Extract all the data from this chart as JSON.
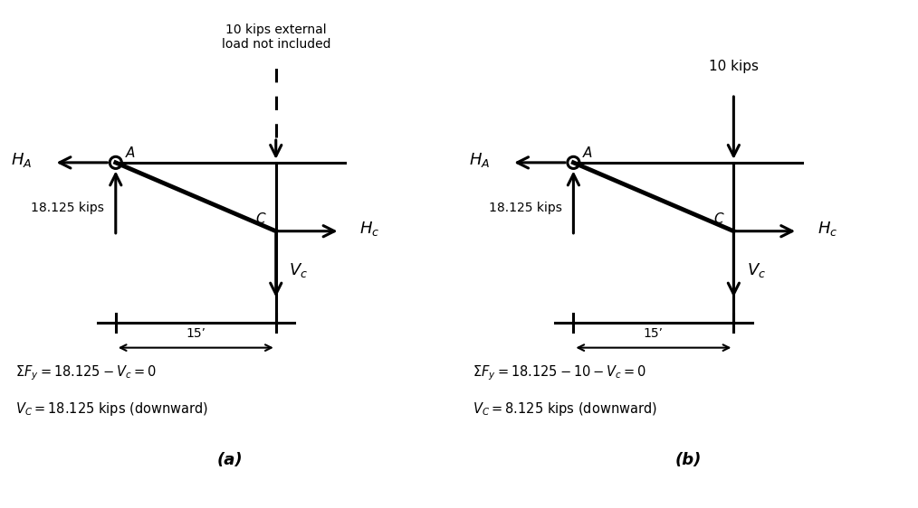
{
  "bg_color": "#ffffff",
  "fig_width": 10.14,
  "fig_height": 5.62,
  "diagram_a": {
    "title": "10 kips external\nload not included",
    "title_dashed": true,
    "eq1": "$\\Sigma F_y = 18.125 - V_c = 0$",
    "eq2": "$V_C = 18.125$ kips (downward)",
    "label_fig": "(a)",
    "ha_label": "$\\boldsymbol{H_A}$",
    "a_label": "$A$",
    "c_label": "$C$",
    "hc_label": "$\\boldsymbol{H_c}$",
    "vc_label": "$\\boldsymbol{V_c}$",
    "force_label": "18.125 kips",
    "dim_label": "15’"
  },
  "diagram_b": {
    "title": "10 kips",
    "title_dashed": false,
    "eq1": "$\\Sigma F_y = 18.125 - 10 - V_c = 0$",
    "eq2": "$V_C = 8.125$ kips (downward)",
    "label_fig": "(b)",
    "ha_label": "$\\boldsymbol{H_A}$",
    "a_label": "$A$",
    "c_label": "$C$",
    "hc_label": "$\\boldsymbol{H_c}$",
    "vc_label": "$\\boldsymbol{V_c}$",
    "force_label": "18.125 kips",
    "dim_label": "15’"
  }
}
